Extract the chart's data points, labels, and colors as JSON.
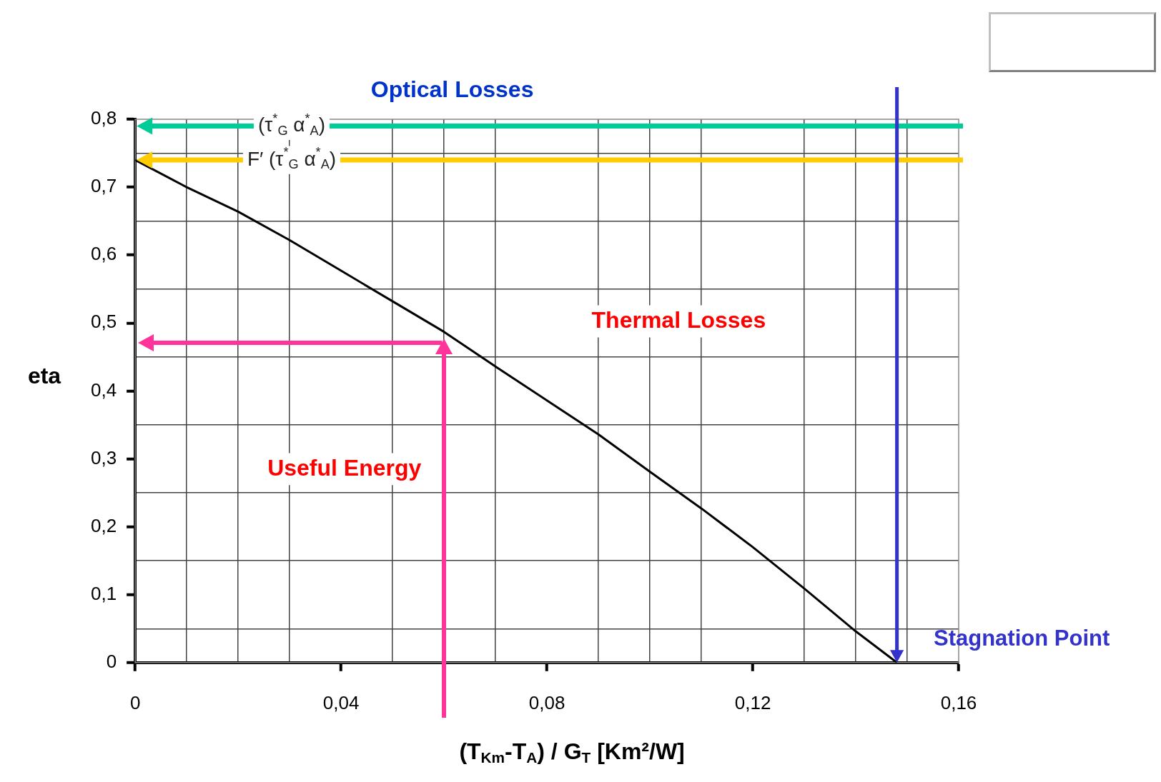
{
  "chart_data": {
    "type": "line",
    "xlabel": "(T$_{Km}$-T$_{A}$) / G$_{T}$ [Km²/W]",
    "ylabel": "eta",
    "series": [
      {
        "color": "#000000",
        "x": [
          0,
          0.01,
          0.02,
          0.03,
          0.04,
          0.05,
          0.06,
          0.07,
          0.08,
          0.09,
          0.1,
          0.11,
          0.12,
          0.13,
          0.14,
          0.148
        ],
        "values": [
          0.74,
          0.7,
          0.664,
          0.622,
          0.577,
          0.532,
          0.487,
          0.436,
          0.386,
          0.336,
          0.281,
          0.227,
          0.17,
          0.109,
          0.046,
          0
        ]
      }
    ],
    "xlim": [
      0,
      0.16
    ],
    "ylim": [
      0,
      0.8
    ],
    "xticks": [
      {
        "value": 0,
        "label": "0"
      },
      {
        "value": 0.01,
        "label": null
      },
      {
        "value": 0.02,
        "label": null
      },
      {
        "value": 0.03,
        "label": null
      },
      {
        "value": 0.04,
        "label": "0,04"
      },
      {
        "value": 0.05,
        "label": null
      },
      {
        "value": 0.06,
        "label": null
      },
      {
        "value": 0.07,
        "label": null
      },
      {
        "value": 0.08,
        "label": "0,08"
      },
      {
        "value": 0.09,
        "label": null
      },
      {
        "value": 0.1,
        "label": null
      },
      {
        "value": 0.11,
        "label": null
      },
      {
        "value": 0.12,
        "label": "0,12"
      },
      {
        "value": 0.13,
        "label": null
      },
      {
        "value": 0.14,
        "label": null
      },
      {
        "value": 0.15,
        "label": null
      },
      {
        "value": 0.16,
        "label": "0,16"
      }
    ],
    "yticks": [
      {
        "value": 0,
        "label": "0"
      },
      {
        "value": 0.05,
        "label": null
      },
      {
        "value": 0.1,
        "label": "0,1"
      },
      {
        "value": 0.15,
        "label": null
      },
      {
        "value": 0.2,
        "label": "0,2"
      },
      {
        "value": 0.25,
        "label": null
      },
      {
        "value": 0.3,
        "label": "0,3"
      },
      {
        "value": 0.35,
        "label": null
      },
      {
        "value": 0.4,
        "label": "0,4"
      },
      {
        "value": 0.45,
        "label": null
      },
      {
        "value": 0.5,
        "label": "0,5"
      },
      {
        "value": 0.55,
        "label": null
      },
      {
        "value": 0.6,
        "label": "0,6"
      },
      {
        "value": 0.65,
        "label": null
      },
      {
        "value": 0.7,
        "label": "0,7"
      },
      {
        "value": 0.75,
        "label": null
      },
      {
        "value": 0.8,
        "label": "0,8"
      }
    ],
    "grid": true,
    "legend": false,
    "ref_lines": [
      {
        "axis": "y",
        "value": 0.79,
        "label": "(τ$^{*}$$_{G}$ α$^{*}$$_{A}$)",
        "color": "#00cc99"
      },
      {
        "axis": "y",
        "value": 0.74,
        "label": "F′ (τ$^{*}$$_{G}$ α$^{*}$$_{A}$)",
        "color": "#ffcc00"
      },
      {
        "axis": "x",
        "value": 0.148,
        "label": "Stagnation Point",
        "color": "#3333cc"
      }
    ],
    "annotations": [
      "Optical Losses",
      "Thermal Losses",
      "Useful Energy"
    ]
  }
}
